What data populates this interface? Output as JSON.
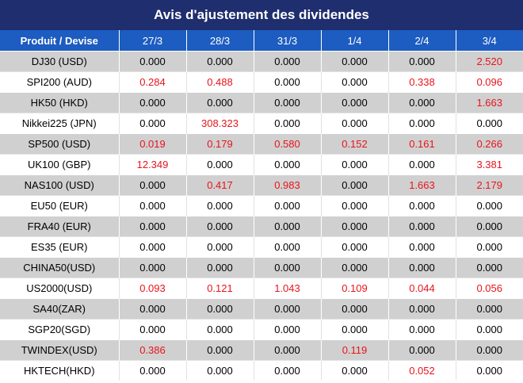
{
  "title": "Avis d'ajustement des dividendes",
  "columns": [
    "Produit / Devise",
    "27/3",
    "28/3",
    "31/3",
    "1/4",
    "2/4",
    "3/4"
  ],
  "rows": [
    {
      "product": "DJ30 (USD)",
      "values": [
        "0.000",
        "0.000",
        "0.000",
        "0.000",
        "0.000",
        "2.520"
      ]
    },
    {
      "product": "SPI200 (AUD)",
      "values": [
        "0.284",
        "0.488",
        "0.000",
        "0.000",
        "0.338",
        "0.096"
      ]
    },
    {
      "product": "HK50 (HKD)",
      "values": [
        "0.000",
        "0.000",
        "0.000",
        "0.000",
        "0.000",
        "1.663"
      ]
    },
    {
      "product": "Nikkei225 (JPN)",
      "values": [
        "0.000",
        "308.323",
        "0.000",
        "0.000",
        "0.000",
        "0.000"
      ]
    },
    {
      "product": "SP500 (USD)",
      "values": [
        "0.019",
        "0.179",
        "0.580",
        "0.152",
        "0.161",
        "0.266"
      ]
    },
    {
      "product": "UK100 (GBP)",
      "values": [
        "12.349",
        "0.000",
        "0.000",
        "0.000",
        "0.000",
        "3.381"
      ]
    },
    {
      "product": "NAS100 (USD)",
      "values": [
        "0.000",
        "0.417",
        "0.983",
        "0.000",
        "1.663",
        "2.179"
      ]
    },
    {
      "product": "EU50 (EUR)",
      "values": [
        "0.000",
        "0.000",
        "0.000",
        "0.000",
        "0.000",
        "0.000"
      ]
    },
    {
      "product": "FRA40 (EUR)",
      "values": [
        "0.000",
        "0.000",
        "0.000",
        "0.000",
        "0.000",
        "0.000"
      ]
    },
    {
      "product": "ES35 (EUR)",
      "values": [
        "0.000",
        "0.000",
        "0.000",
        "0.000",
        "0.000",
        "0.000"
      ]
    },
    {
      "product": "CHINA50(USD)",
      "values": [
        "0.000",
        "0.000",
        "0.000",
        "0.000",
        "0.000",
        "0.000"
      ]
    },
    {
      "product": "US2000(USD)",
      "values": [
        "0.093",
        "0.121",
        "1.043",
        "0.109",
        "0.044",
        "0.056"
      ]
    },
    {
      "product": "SA40(ZAR)",
      "values": [
        "0.000",
        "0.000",
        "0.000",
        "0.000",
        "0.000",
        "0.000"
      ]
    },
    {
      "product": "SGP20(SGD)",
      "values": [
        "0.000",
        "0.000",
        "0.000",
        "0.000",
        "0.000",
        "0.000"
      ]
    },
    {
      "product": "TWINDEX(USD)",
      "values": [
        "0.386",
        "0.000",
        "0.000",
        "0.119",
        "0.000",
        "0.000"
      ]
    },
    {
      "product": "HKTECH(HKD)",
      "values": [
        "0.000",
        "0.000",
        "0.000",
        "0.000",
        "0.052",
        "0.000"
      ]
    }
  ],
  "colors": {
    "title_bg": "#1f2e6e",
    "header_bg": "#1d5cc0",
    "shaded_row_bg": "#d0d0d0",
    "nonzero_text": "#e8141b",
    "zero_text": "#000000"
  }
}
